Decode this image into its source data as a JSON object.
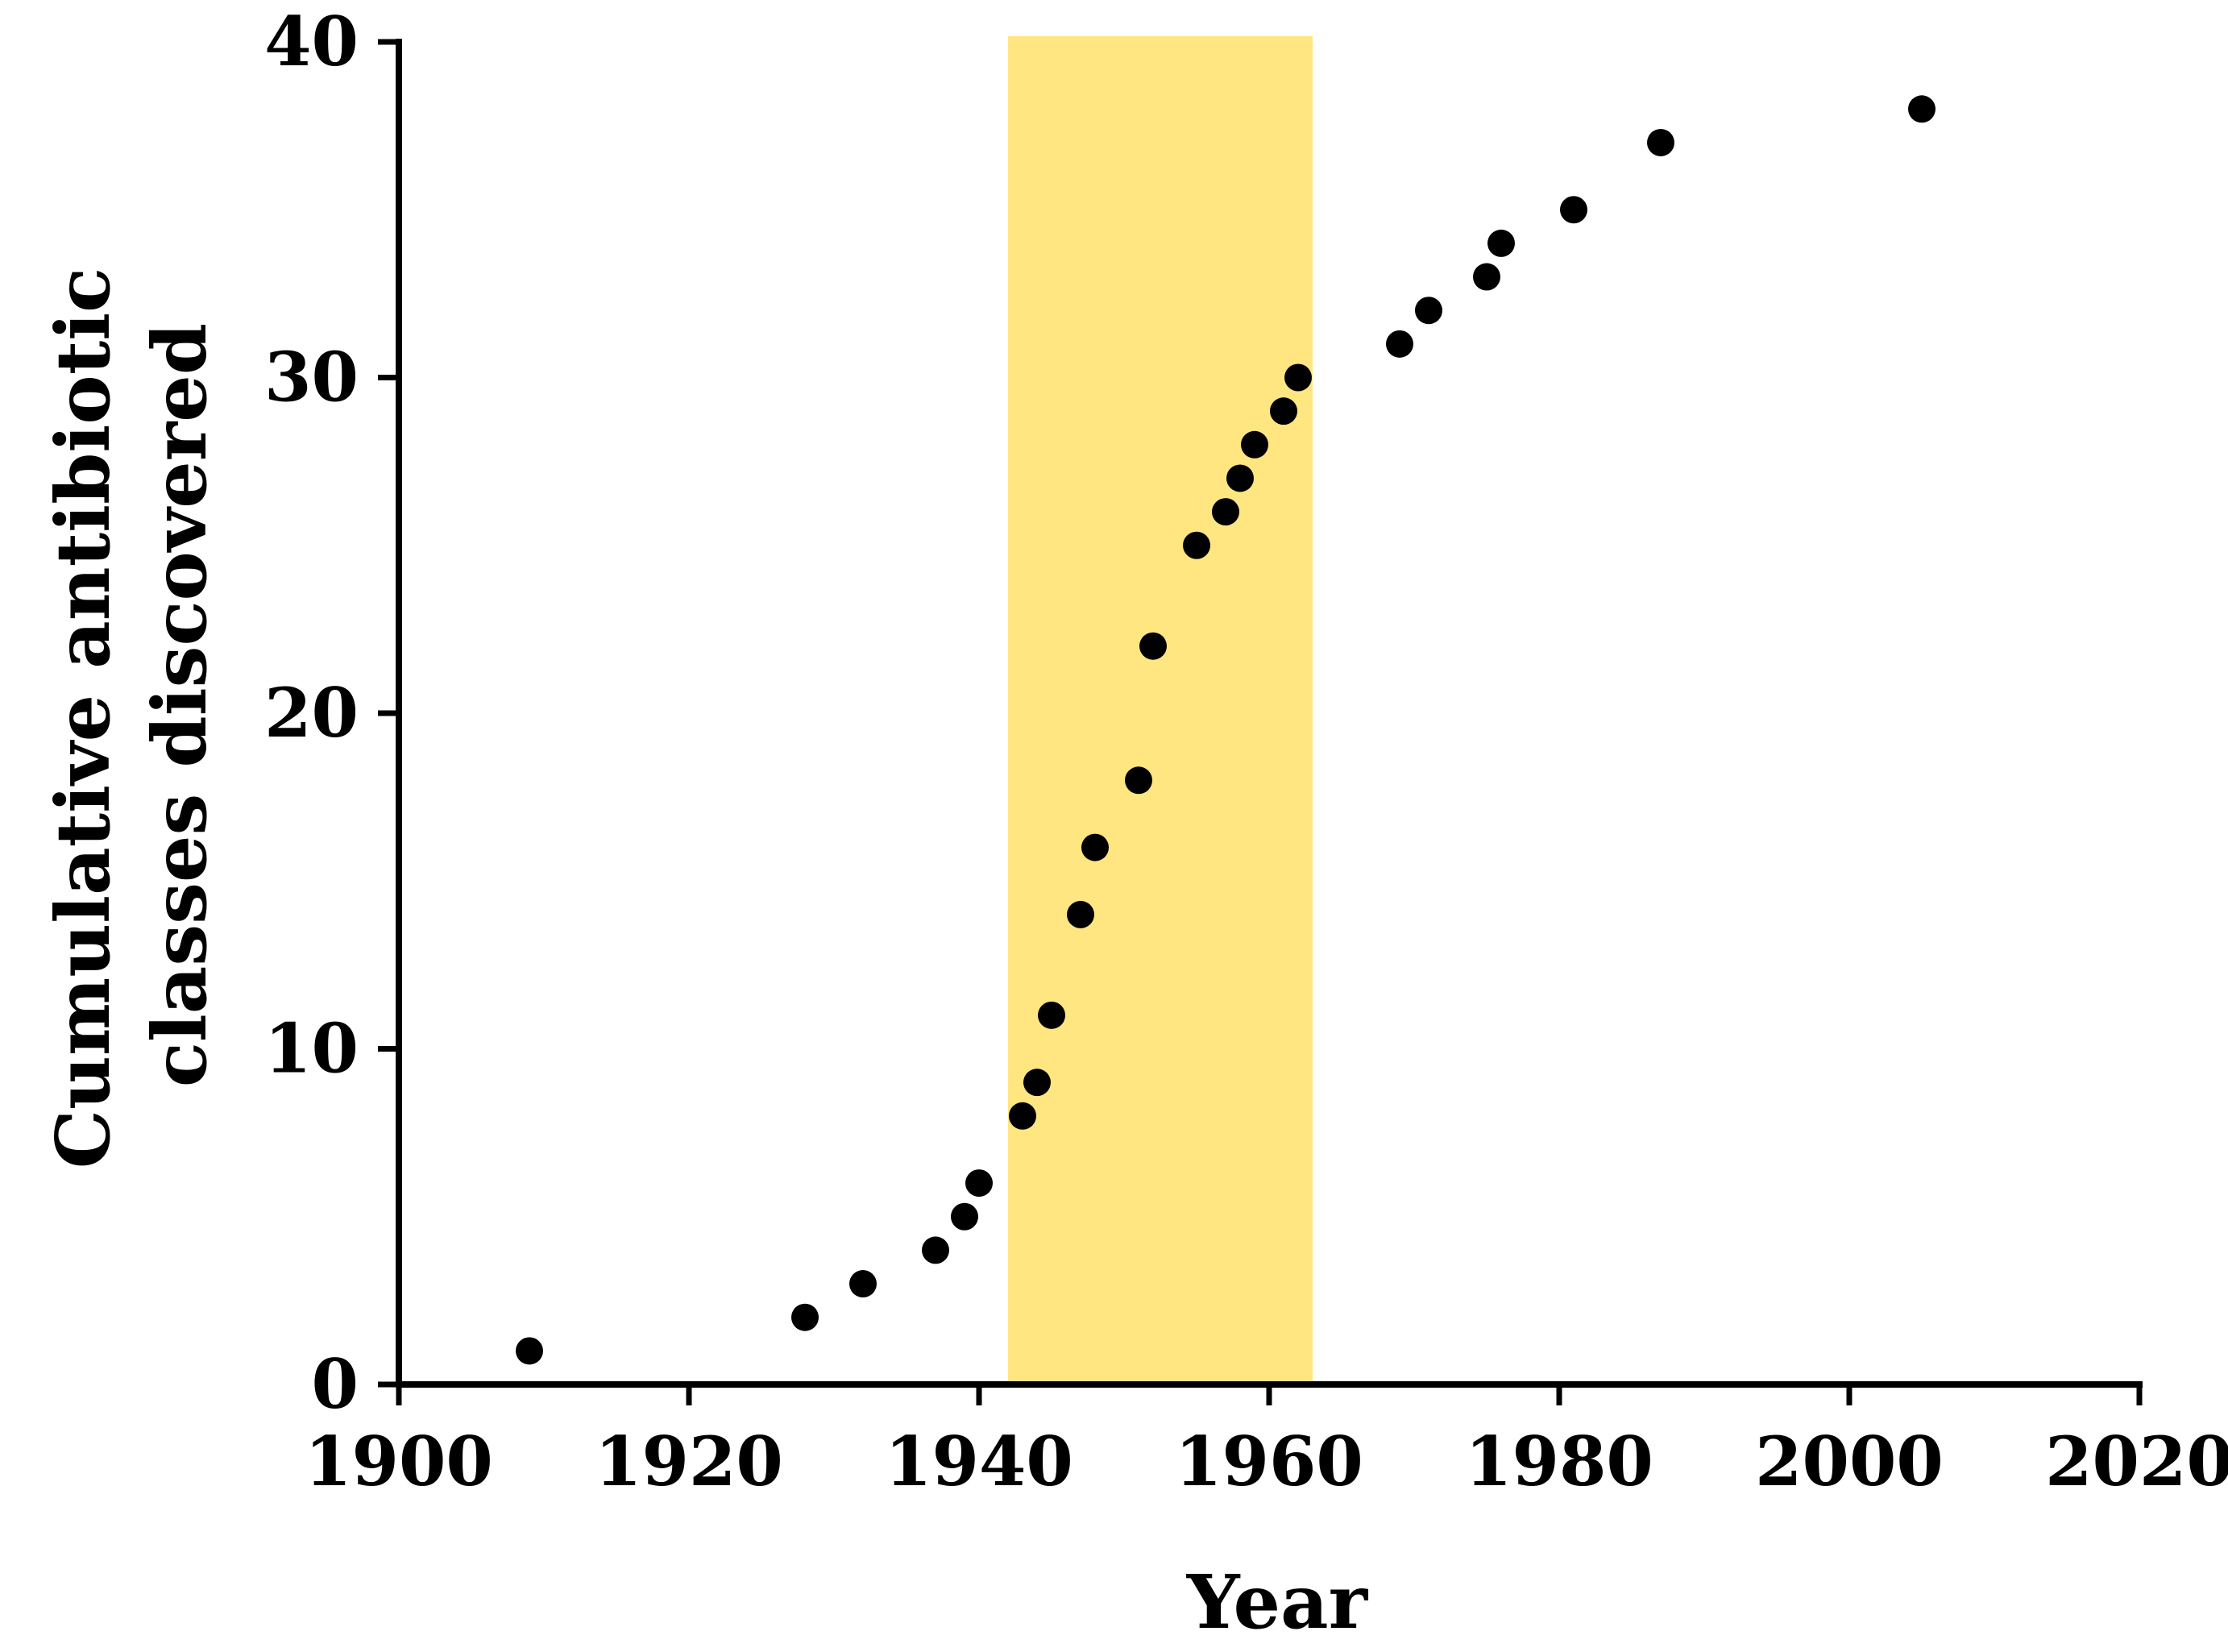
{
  "chart_data": {
    "type": "scatter",
    "title": "",
    "xlabel": "Year",
    "ylabel_lines": [
      "Cumulative antibiotic",
      "classes discovered"
    ],
    "xlim": [
      1900,
      2020
    ],
    "ylim": [
      0,
      40
    ],
    "x_ticks": [
      1900,
      1920,
      1940,
      1960,
      1980,
      2000,
      2020
    ],
    "y_ticks": [
      0,
      10,
      20,
      30,
      40
    ],
    "grid": false,
    "legend": "none",
    "highlight_band": {
      "x_start": 1942,
      "x_end": 1963,
      "color": "#FFE680"
    },
    "marker_color": "#000000",
    "points": [
      {
        "x": 1909,
        "y": 1
      },
      {
        "x": 1928,
        "y": 2
      },
      {
        "x": 1932,
        "y": 3
      },
      {
        "x": 1937,
        "y": 4
      },
      {
        "x": 1939,
        "y": 5
      },
      {
        "x": 1940,
        "y": 6
      },
      {
        "x": 1943,
        "y": 8
      },
      {
        "x": 1944,
        "y": 9
      },
      {
        "x": 1945,
        "y": 11
      },
      {
        "x": 1947,
        "y": 14
      },
      {
        "x": 1948,
        "y": 16
      },
      {
        "x": 1951,
        "y": 18
      },
      {
        "x": 1952,
        "y": 22
      },
      {
        "x": 1955,
        "y": 25
      },
      {
        "x": 1957,
        "y": 26
      },
      {
        "x": 1958,
        "y": 27
      },
      {
        "x": 1959,
        "y": 28
      },
      {
        "x": 1961,
        "y": 29
      },
      {
        "x": 1962,
        "y": 30
      },
      {
        "x": 1969,
        "y": 31
      },
      {
        "x": 1971,
        "y": 32
      },
      {
        "x": 1975,
        "y": 33
      },
      {
        "x": 1976,
        "y": 34
      },
      {
        "x": 1981,
        "y": 35
      },
      {
        "x": 1987,
        "y": 37
      },
      {
        "x": 2005,
        "y": 38
      }
    ]
  }
}
